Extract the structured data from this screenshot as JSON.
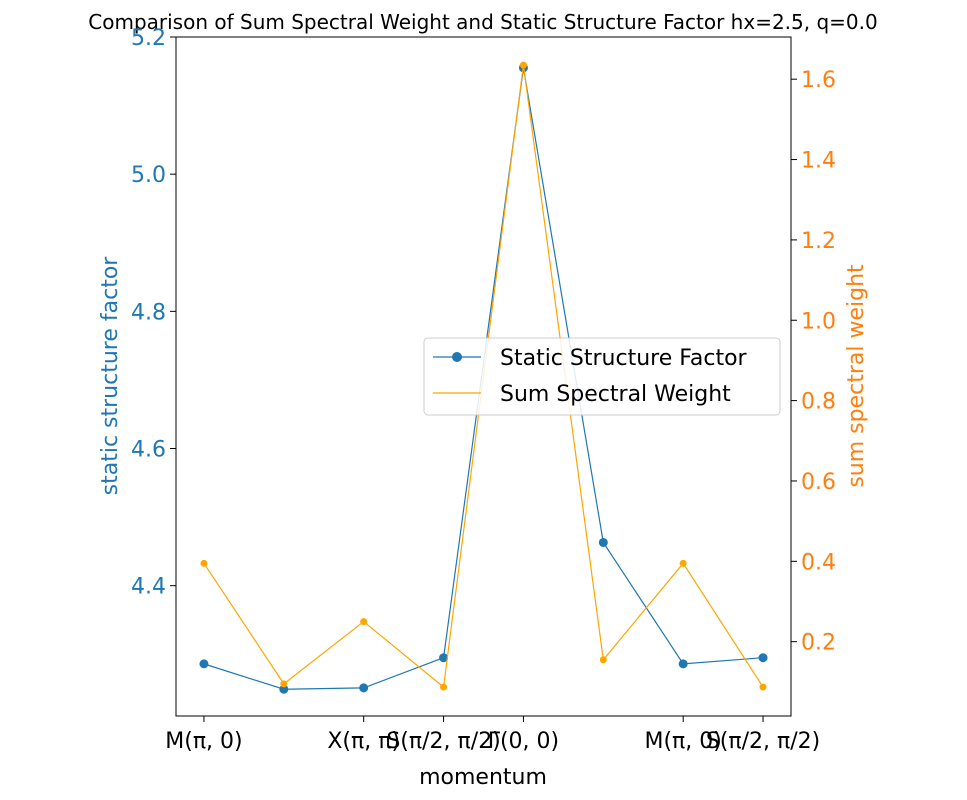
{
  "chart_data": {
    "type": "line",
    "title": "Comparison of Sum Spectral Weight and Static Structure Factor hx=2.5, q=0.0",
    "xlabel": "momentum",
    "x": [
      0,
      1,
      2,
      3,
      4,
      5,
      6,
      7
    ],
    "xlim": [
      -0.35,
      7.35
    ],
    "xticks": [
      {
        "x": 0,
        "label": "M(π, 0)"
      },
      {
        "x": 2,
        "label": "X(π, π)"
      },
      {
        "x": 3,
        "label": "S(π/2, π/2)"
      },
      {
        "x": 4,
        "label": "Γ(0, 0)"
      },
      {
        "x": 6,
        "label": "M(π, 0)"
      },
      {
        "x": 7,
        "label": "S(π/2, π/2)"
      }
    ],
    "y_left": {
      "label": "static structure factor",
      "color": "#1f77b4",
      "ylim": [
        4.21,
        5.2
      ],
      "ticks": [
        4.4,
        4.6,
        4.8,
        5.0,
        5.2
      ],
      "tick_labels": [
        "4.4",
        "4.6",
        "4.8",
        "5.0",
        "5.2"
      ]
    },
    "y_right": {
      "label": "sum spectral weight",
      "color": "#ff7f0e",
      "ylim": [
        0.015,
        1.705
      ],
      "ticks": [
        0.2,
        0.4,
        0.6,
        0.8,
        1.0,
        1.2,
        1.4,
        1.6
      ],
      "tick_labels": [
        "0.2",
        "0.4",
        "0.6",
        "0.8",
        "1.0",
        "1.2",
        "1.4",
        "1.6"
      ]
    },
    "series": [
      {
        "name": "Static Structure Factor",
        "axis": "left",
        "color": "#1f77b4",
        "values": [
          4.286,
          4.249,
          4.251,
          4.295,
          5.155,
          4.463,
          4.286,
          4.295
        ]
      },
      {
        "name": "Sum Spectral Weight",
        "axis": "right",
        "color": "#ffa500",
        "values": [
          0.395,
          0.095,
          0.25,
          0.087,
          1.635,
          0.155,
          0.395,
          0.087
        ]
      }
    ],
    "legend": {
      "placement": "center-right"
    }
  }
}
